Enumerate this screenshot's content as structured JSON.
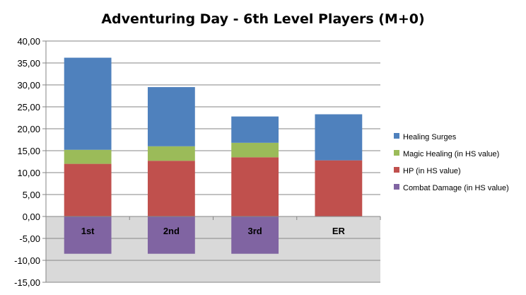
{
  "chart_data": {
    "type": "bar",
    "stacked": true,
    "title": "Adventuring Day - 6th Level Players (M+0)",
    "xlabel": "",
    "ylabel": "",
    "ylim": [
      -15,
      40
    ],
    "yticks": [
      40,
      35,
      30,
      25,
      20,
      15,
      10,
      5,
      0,
      -5,
      -10,
      -15
    ],
    "ytick_labels": [
      "40,00",
      "35,00",
      "30,00",
      "25,00",
      "20,00",
      "15,00",
      "10,00",
      "5,00",
      "0,00",
      "-5,00",
      "-10,00",
      "-15,00"
    ],
    "grid": true,
    "negative_region_shaded": true,
    "legend_position": "right",
    "categories": [
      "1st",
      "2nd",
      "3rd",
      "ER"
    ],
    "series": [
      {
        "name": "Healing Surges",
        "color": "#4f81bd",
        "values": [
          21.0,
          13.5,
          6.0,
          10.5
        ]
      },
      {
        "name": "Magic Healing (in HS value)",
        "color": "#9bbb59",
        "values": [
          3.2,
          3.3,
          3.3,
          0
        ]
      },
      {
        "name": "HP (in HS value)",
        "color": "#c0504d",
        "values": [
          12.0,
          12.7,
          13.5,
          12.8
        ]
      },
      {
        "name": "Combat Damage (in HS value)",
        "color": "#8064a2",
        "values": [
          -8.5,
          -8.5,
          -8.5,
          0
        ]
      }
    ],
    "legend_order": [
      0,
      1,
      2,
      3
    ],
    "stack_order": [
      2,
      1,
      0
    ]
  }
}
